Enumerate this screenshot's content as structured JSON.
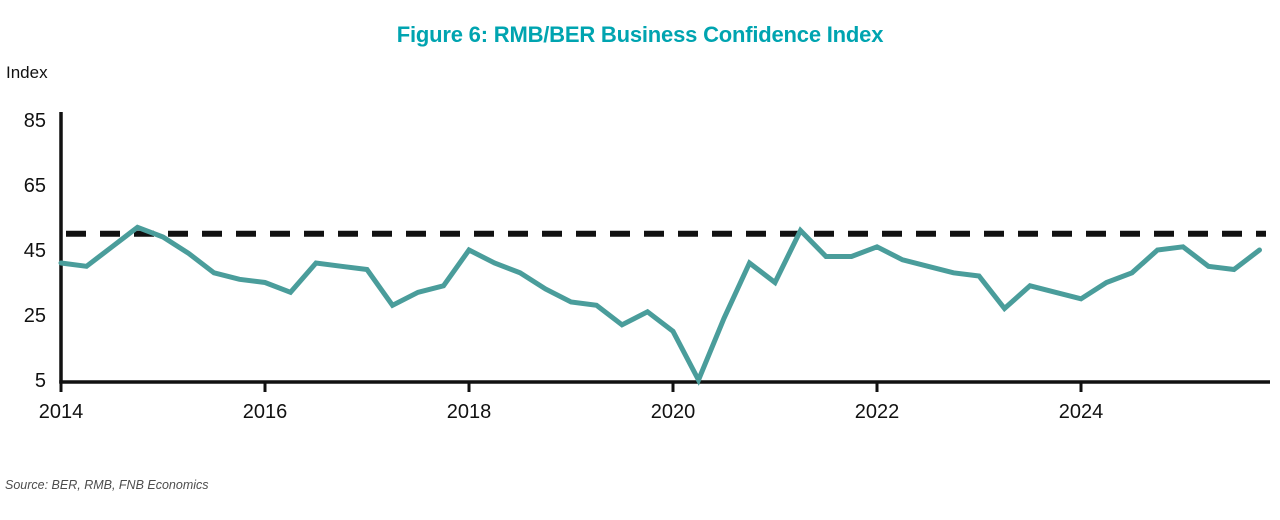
{
  "title": "Figure 6: RMB/BER Business Confidence Index",
  "source": "Source: BER, RMB, FNB Economics",
  "colors": {
    "title": "#00A4B0",
    "axis": "#111111",
    "reference_line": "#111111",
    "series_line": "#4A9D9B",
    "tick_text": "#111111",
    "source_text": "#4D4D4D"
  },
  "chart_data": {
    "type": "line",
    "title": "Figure 6: RMB/BER Business Confidence Index",
    "xlabel": "",
    "ylabel": "Index",
    "frequency": "quarterly",
    "x_start": "2014 Q1",
    "x_end": "2025 Q4",
    "x_tick_labels": [
      "2014",
      "2016",
      "2018",
      "2020",
      "2022",
      "2024"
    ],
    "y_ticks": [
      5,
      25,
      45,
      65,
      85
    ],
    "ylim": [
      5,
      85
    ],
    "grid": false,
    "legend": false,
    "reference_line": {
      "value": 50,
      "style": "dashed"
    },
    "series": [
      {
        "name": "RMB/BER Business Confidence Index",
        "values": [
          41,
          40,
          46,
          52,
          49,
          44,
          38,
          36,
          35,
          32,
          41,
          40,
          39,
          28,
          32,
          34,
          45,
          41,
          38,
          33,
          29,
          28,
          22,
          26,
          20,
          5,
          24,
          41,
          35,
          51,
          43,
          43,
          46,
          42,
          40,
          38,
          37,
          27,
          34,
          32,
          30,
          35,
          38,
          45,
          46,
          40,
          39,
          45
        ]
      }
    ]
  }
}
